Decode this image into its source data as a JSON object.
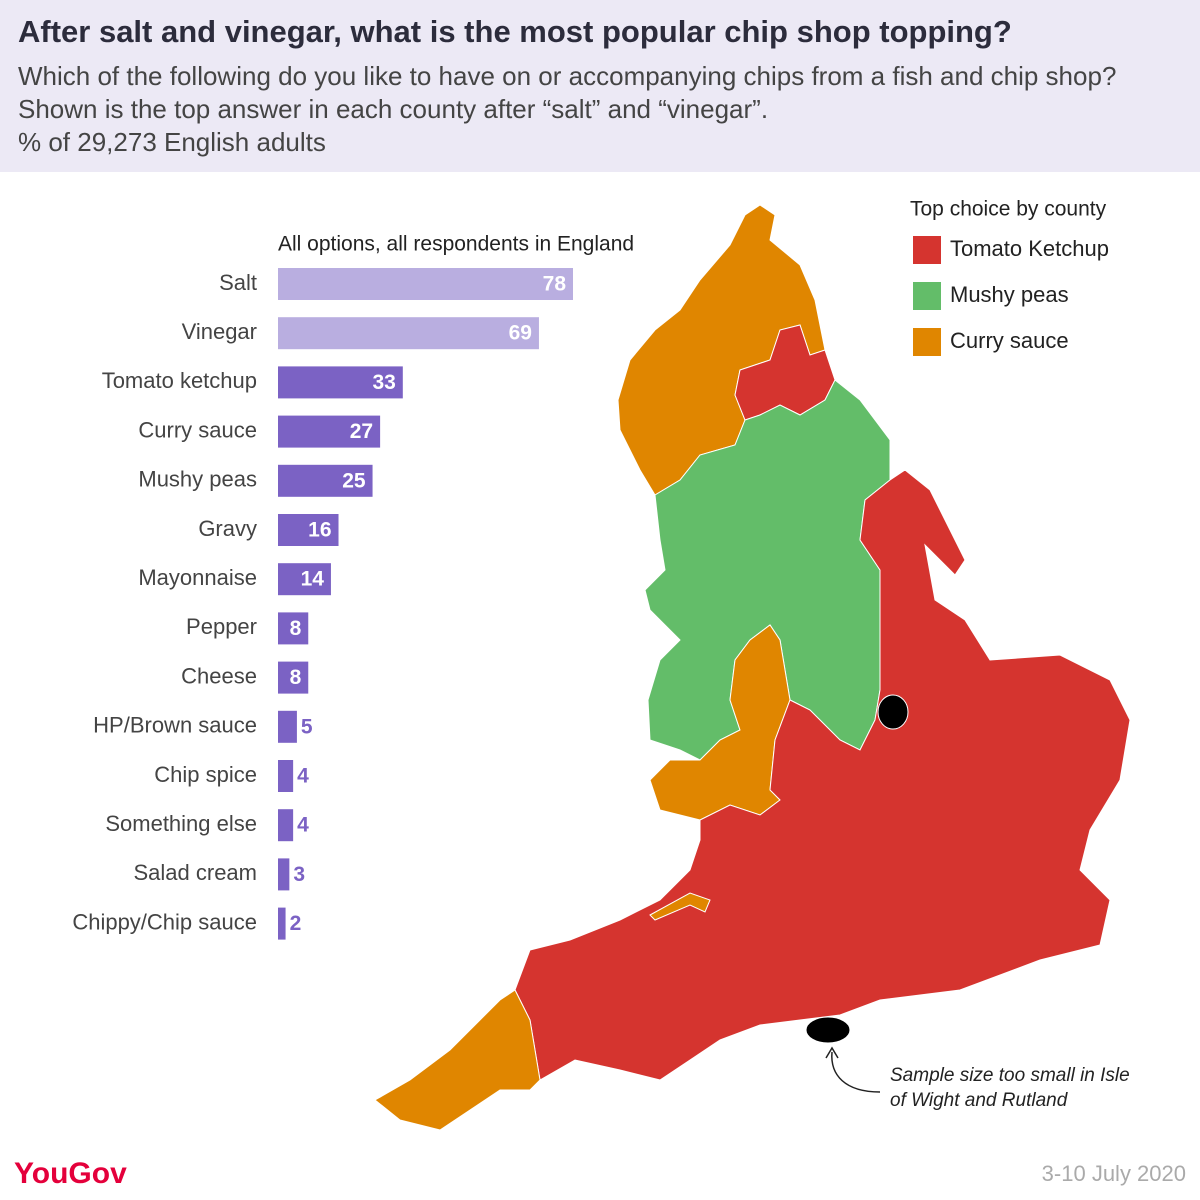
{
  "title": "After salt and vinegar, what is the most popular chip shop topping?",
  "subtitle": "Which of the following do you like to have on or accompanying chips from a fish and chip shop? Shown is the top answer in each county after “salt” and “vinegar”.",
  "note": "% of 29,273 English adults",
  "chart_data": {
    "type": "bar",
    "orientation": "horizontal",
    "title": "All options, all respondents in England",
    "categories": [
      "Salt",
      "Vinegar",
      "Tomato ketchup",
      "Curry sauce",
      "Mushy peas",
      "Gravy",
      "Mayonnaise",
      "Pepper",
      "Cheese",
      "HP/Brown sauce",
      "Chip spice",
      "Something else",
      "Salad cream",
      "Chippy/Chip sauce"
    ],
    "values": [
      78,
      69,
      33,
      27,
      25,
      16,
      14,
      8,
      8,
      5,
      4,
      4,
      3,
      2
    ],
    "colors": [
      "#b9aee0",
      "#b9aee0",
      "#7b62c4",
      "#7b62c4",
      "#7b62c4",
      "#7b62c4",
      "#7b62c4",
      "#7b62c4",
      "#7b62c4",
      "#7b62c4",
      "#7b62c4",
      "#7b62c4",
      "#7b62c4",
      "#7b62c4"
    ]
  },
  "map": {
    "legend": {
      "title": "Top choice by county",
      "items": [
        {
          "name": "Tomato Ketchup",
          "color": "#d5342f"
        },
        {
          "name": "Mushy peas",
          "color": "#63bd69"
        },
        {
          "name": "Curry sauce",
          "color": "#e08600"
        }
      ]
    },
    "annotation": [
      "Sample size too small in Isle",
      "of Wight and Rutland"
    ]
  },
  "footer": {
    "brand": "YouGov",
    "date": "3-10 July 2020"
  }
}
